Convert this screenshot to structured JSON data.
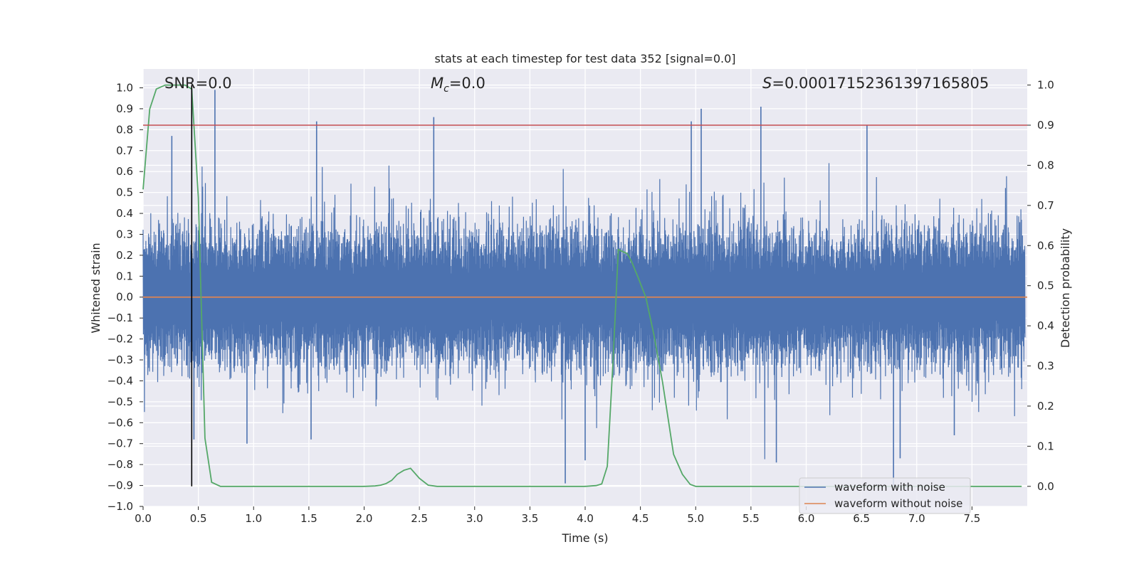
{
  "chart_data": {
    "type": "line",
    "title": "stats at each timestep for test data 352 [signal=0.0]",
    "xlabel": "Time (s)",
    "ylabel_left": "Whitened strain",
    "ylabel_right": "Detection probability",
    "xlim": [
      0.0,
      8.0
    ],
    "ylim_left": [
      -1.0,
      1.09
    ],
    "ylim_right": [
      -0.05,
      1.04
    ],
    "x_ticks": [
      "0.0",
      "0.5",
      "1.0",
      "1.5",
      "2.0",
      "2.5",
      "3.0",
      "3.5",
      "4.0",
      "4.5",
      "5.0",
      "5.5",
      "6.0",
      "6.5",
      "7.0",
      "7.5"
    ],
    "x_tick_values": [
      0.0,
      0.5,
      1.0,
      1.5,
      2.0,
      2.5,
      3.0,
      3.5,
      4.0,
      4.5,
      5.0,
      5.5,
      6.0,
      6.5,
      7.0,
      7.5
    ],
    "y_left_ticks": [
      "1.0",
      "0.9",
      "0.8",
      "0.7",
      "0.6",
      "0.5",
      "0.4",
      "0.3",
      "0.2",
      "0.1",
      "0.0",
      "−0.1",
      "−0.2",
      "−0.3",
      "−0.4",
      "−0.5",
      "−0.6",
      "−0.7",
      "−0.8",
      "−0.9",
      "−1.0"
    ],
    "y_left_tick_values": [
      1.0,
      0.9,
      0.8,
      0.7,
      0.6,
      0.5,
      0.4,
      0.3,
      0.2,
      0.1,
      0.0,
      -0.1,
      -0.2,
      -0.3,
      -0.4,
      -0.5,
      -0.6,
      -0.7,
      -0.8,
      -0.9,
      -1.0
    ],
    "y_right_ticks": [
      "1.0",
      "0.9",
      "0.8",
      "0.7",
      "0.6",
      "0.5",
      "0.4",
      "0.3",
      "0.2",
      "0.1",
      "0.0"
    ],
    "y_right_tick_values": [
      1.0,
      0.9,
      0.8,
      0.7,
      0.6,
      0.5,
      0.4,
      0.3,
      0.2,
      0.1,
      0.0
    ],
    "annotations": {
      "snr": "SNR=0.0",
      "mc_symbol": "M",
      "mc_subscript": "c",
      "mc_value": "=0.0",
      "s_symbol": "S",
      "s_value": "=0.00017152361397165805"
    },
    "threshold": {
      "value": 0.9,
      "axis": "right",
      "color": "#c44e52"
    },
    "marker_line": {
      "x": 0.44,
      "y_range": [
        0.0,
        1.0
      ],
      "axis": "right",
      "color": "#000000"
    },
    "series": [
      {
        "name": "waveform with noise",
        "axis": "left",
        "color": "#4c72b0",
        "description": "whitened noisy strain, dense band roughly -0.35..0.35 with spikes",
        "spikes": [
          {
            "x": 0.26,
            "y": 0.77
          },
          {
            "x": 0.44,
            "y": 0.99
          },
          {
            "x": 0.65,
            "y": 0.99
          },
          {
            "x": 1.57,
            "y": 0.84
          },
          {
            "x": 2.63,
            "y": 0.86
          },
          {
            "x": 5.05,
            "y": 0.9
          },
          {
            "x": 5.59,
            "y": 0.91
          },
          {
            "x": 4.96,
            "y": 0.84
          },
          {
            "x": 6.55,
            "y": 0.82
          },
          {
            "x": 3.82,
            "y": -0.89
          },
          {
            "x": 6.79,
            "y": -0.9
          },
          {
            "x": 0.46,
            "y": -0.68
          },
          {
            "x": 0.94,
            "y": -0.7
          },
          {
            "x": 1.52,
            "y": -0.68
          },
          {
            "x": 5.73,
            "y": -0.79
          },
          {
            "x": 6.85,
            "y": -0.77
          },
          {
            "x": 4.0,
            "y": -0.78
          },
          {
            "x": 7.34,
            "y": -0.66
          }
        ]
      },
      {
        "name": "waveform without noise",
        "axis": "left",
        "color": "#dd8452",
        "x": [
          0.0,
          8.0
        ],
        "y": [
          0.0,
          0.0
        ]
      },
      {
        "name": "detection probability",
        "axis": "right",
        "color": "#55a868",
        "x": [
          0.0,
          0.06,
          0.12,
          0.2,
          0.3,
          0.38,
          0.44,
          0.5,
          0.56,
          0.62,
          0.7,
          1.0,
          1.5,
          2.0,
          2.1,
          2.15,
          2.2,
          2.25,
          2.3,
          2.36,
          2.42,
          2.5,
          2.58,
          2.66,
          3.0,
          3.5,
          4.0,
          4.1,
          4.15,
          4.2,
          4.25,
          4.3,
          4.38,
          4.42,
          4.48,
          4.55,
          4.62,
          4.7,
          4.8,
          4.88,
          4.95,
          5.0,
          6.0,
          7.0,
          7.95
        ],
        "y": [
          0.74,
          0.94,
          0.99,
          1.0,
          1.0,
          1.0,
          0.99,
          0.72,
          0.12,
          0.01,
          0.0,
          0.0,
          0.0,
          0.0,
          0.001,
          0.003,
          0.007,
          0.015,
          0.03,
          0.04,
          0.045,
          0.02,
          0.003,
          0.0,
          0.0,
          0.0,
          0.0,
          0.002,
          0.006,
          0.05,
          0.3,
          0.59,
          0.58,
          0.56,
          0.52,
          0.47,
          0.38,
          0.26,
          0.08,
          0.03,
          0.005,
          0.0,
          0.0,
          0.0,
          0.0
        ]
      }
    ],
    "legend": {
      "placement": "lower-right",
      "entries": [
        {
          "label": "waveform with noise",
          "color": "#4c72b0"
        },
        {
          "label": "waveform without noise",
          "color": "#dd8452"
        }
      ]
    }
  }
}
